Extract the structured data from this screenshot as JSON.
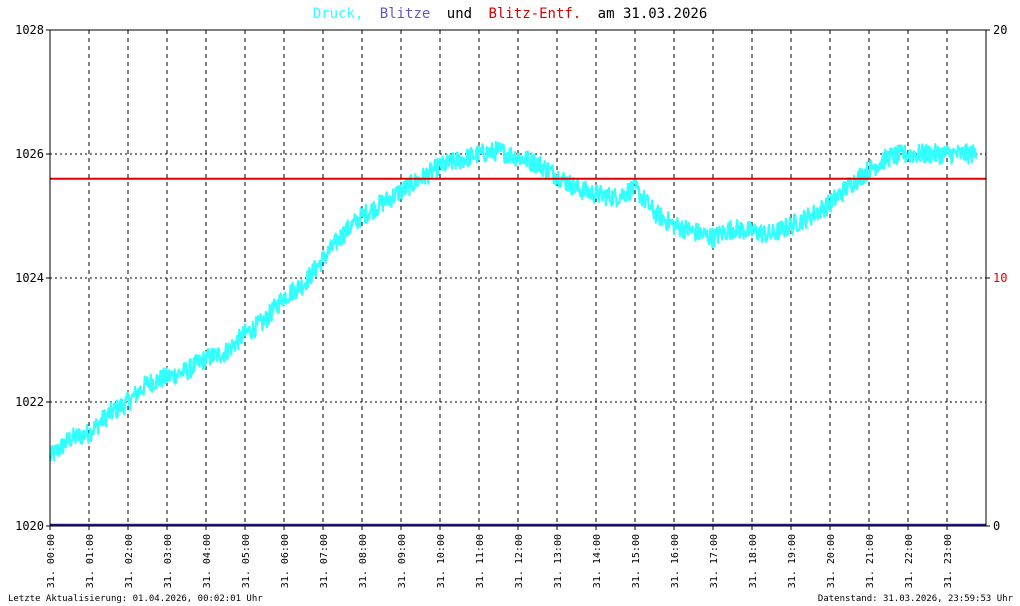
{
  "title": {
    "druck": "Druck,",
    "blitze": "Blitze",
    "und": "und",
    "blitz_entf": "Blitz-Entf.",
    "am_date": "am 31.03.2026",
    "colors": {
      "druck": "#33ffff",
      "blitze": "#6655bb",
      "und": "#000000",
      "blitz_entf": "#dd0000",
      "am_date": "#000000"
    }
  },
  "footer": {
    "left": "Letzte Aktualisierung: 01.04.2026, 00:02:01 Uhr",
    "right": "Datenstand: 31.03.2026, 23:59:53 Uhr"
  },
  "chart_data": {
    "type": "line",
    "x_tick_labels": [
      "31. 00:00",
      "31. 01:00",
      "31. 02:00",
      "31. 03:00",
      "31. 04:00",
      "31. 05:00",
      "31. 06:00",
      "31. 07:00",
      "31. 08:00",
      "31. 09:00",
      "31. 10:00",
      "31. 11:00",
      "31. 12:00",
      "31. 13:00",
      "31. 14:00",
      "31. 15:00",
      "31. 16:00",
      "31. 17:00",
      "31. 18:00",
      "31. 19:00",
      "31. 20:00",
      "31. 21:00",
      "31. 22:00",
      "31. 23:00"
    ],
    "y_left": {
      "ticks": [
        "1020",
        "1022",
        "1024",
        "1026",
        "1028"
      ],
      "min": 1020,
      "max": 1028
    },
    "y_right": {
      "ticks": [
        "0",
        "10",
        "20"
      ],
      "min": 0,
      "max": 20,
      "tick_colors": [
        "#000000",
        "#dd0000",
        "#000000"
      ]
    },
    "grid": true,
    "series": [
      {
        "name": "Druck",
        "axis": "left",
        "color": "#33ffff",
        "hour": [
          0,
          0.5,
          1,
          1.5,
          2,
          2.5,
          3,
          3.5,
          4,
          4.5,
          5,
          5.5,
          6,
          6.5,
          7,
          7.5,
          8,
          8.5,
          9,
          9.5,
          10,
          10.5,
          11,
          11.5,
          12,
          12.5,
          13,
          13.5,
          14,
          14.5,
          15,
          15.5,
          16,
          16.5,
          17,
          17.5,
          18,
          18.5,
          19,
          19.5,
          20,
          20.5,
          21,
          21.5,
          22,
          22.5,
          23,
          23.75
        ],
        "value": [
          1021.1,
          1021.4,
          1021.5,
          1021.8,
          1022.0,
          1022.3,
          1022.4,
          1022.5,
          1022.7,
          1022.8,
          1023.1,
          1023.3,
          1023.7,
          1023.9,
          1024.3,
          1024.7,
          1025.0,
          1025.2,
          1025.4,
          1025.6,
          1025.8,
          1025.9,
          1026.0,
          1026.05,
          1025.95,
          1025.85,
          1025.65,
          1025.45,
          1025.35,
          1025.3,
          1025.45,
          1025.05,
          1024.85,
          1024.75,
          1024.65,
          1024.8,
          1024.75,
          1024.7,
          1024.85,
          1025.0,
          1025.2,
          1025.5,
          1025.75,
          1025.95,
          1026.0,
          1026.0,
          1026.0,
          1026.0
        ]
      },
      {
        "name": "Blitze",
        "axis": "right",
        "color": "#1a1a80",
        "constant": 0
      },
      {
        "name": "Blitz-Entf.",
        "axis": "left",
        "color": "#dd0000",
        "constant": 1025.6
      }
    ]
  }
}
